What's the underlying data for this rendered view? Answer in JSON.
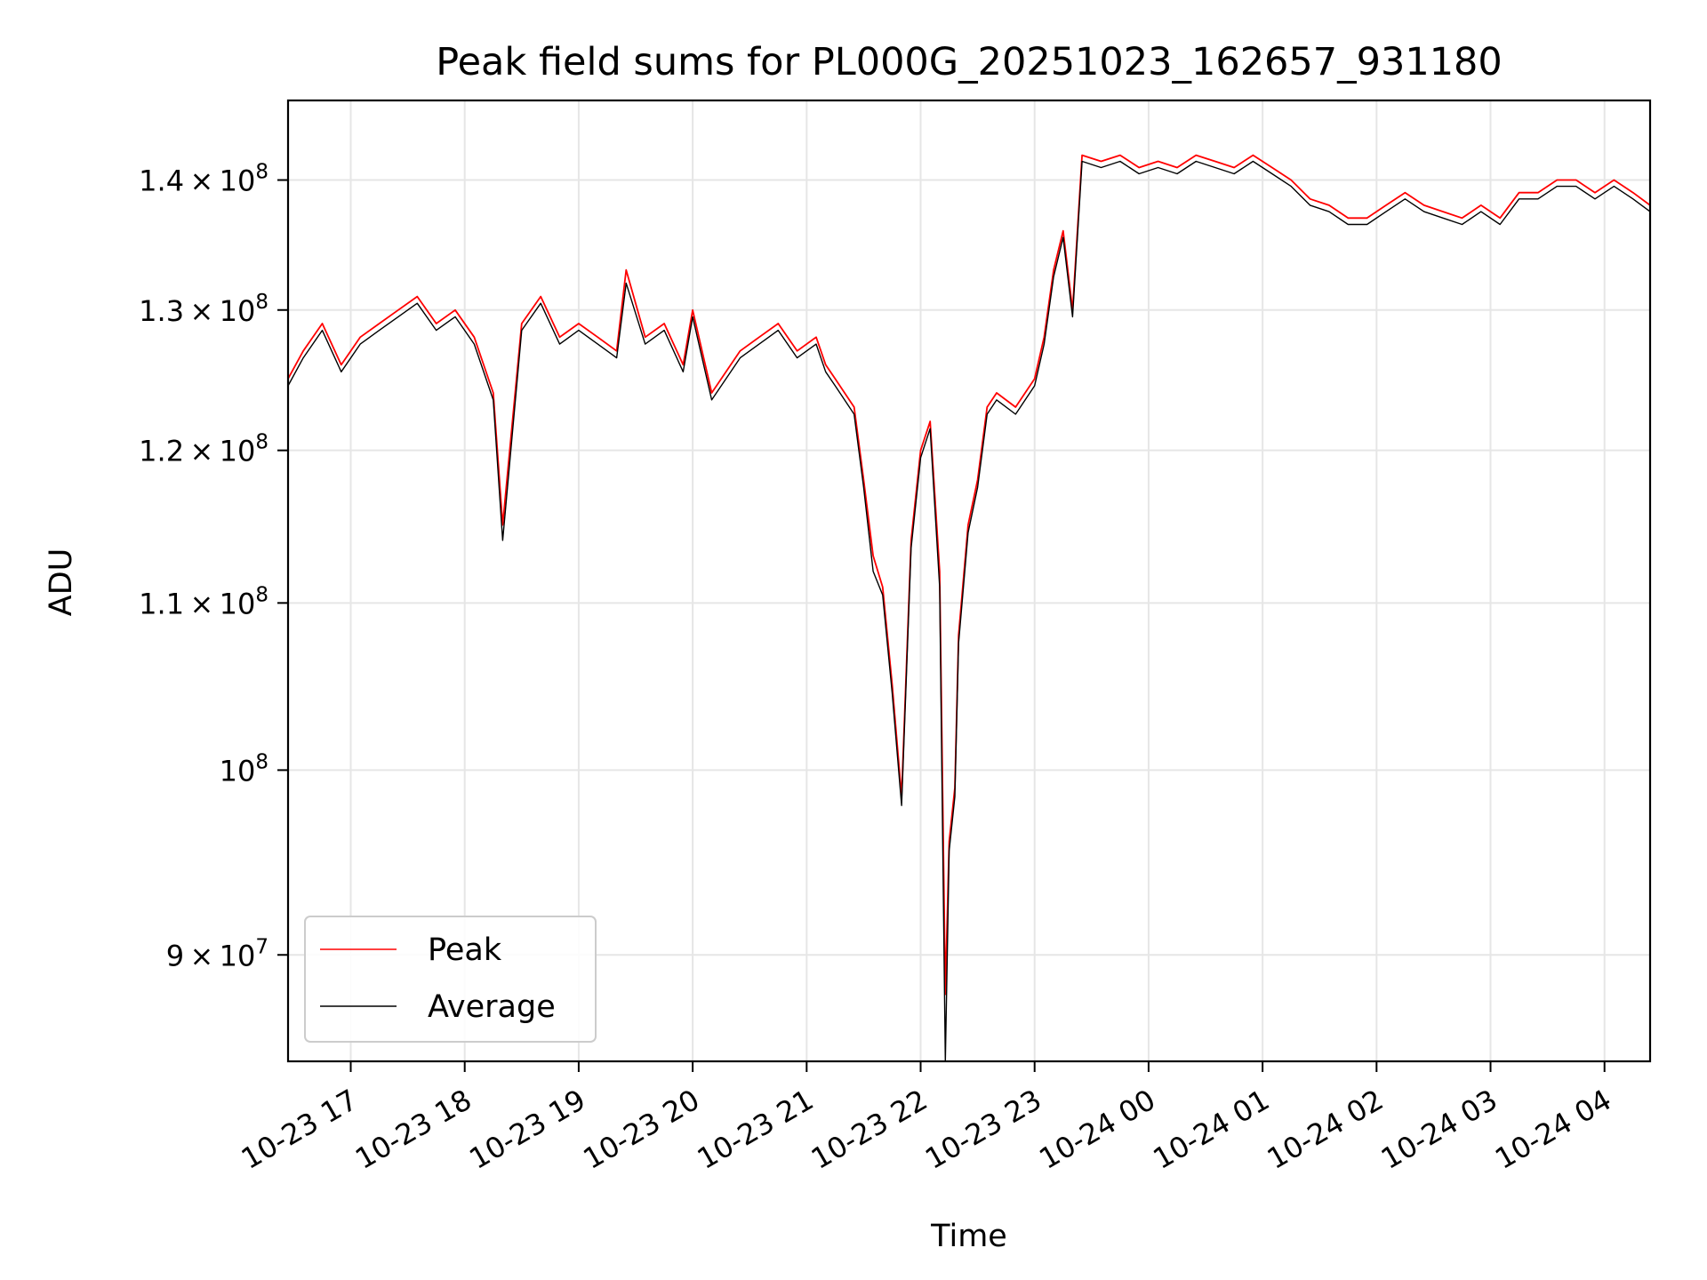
{
  "chart_data": {
    "type": "line",
    "title": "Peak field sums for PL000G_20251023_162657_931180",
    "xlabel": "Time",
    "ylabel": "ADU",
    "y_scale": "log",
    "grid": true,
    "legend_position": "lower-left",
    "xlim": [
      "2025-10-23 16:27",
      "2025-10-24 04:24"
    ],
    "ylim": [
      84700000,
      146500000
    ],
    "x_ticks": [
      {
        "value": "2025-10-23 17:00",
        "label": "10-23 17"
      },
      {
        "value": "2025-10-23 18:00",
        "label": "10-23 18"
      },
      {
        "value": "2025-10-23 19:00",
        "label": "10-23 19"
      },
      {
        "value": "2025-10-23 20:00",
        "label": "10-23 20"
      },
      {
        "value": "2025-10-23 21:00",
        "label": "10-23 21"
      },
      {
        "value": "2025-10-23 22:00",
        "label": "10-23 22"
      },
      {
        "value": "2025-10-23 23:00",
        "label": "10-23 23"
      },
      {
        "value": "2025-10-24 00:00",
        "label": "10-24 00"
      },
      {
        "value": "2025-10-24 01:00",
        "label": "10-24 01"
      },
      {
        "value": "2025-10-24 02:00",
        "label": "10-24 02"
      },
      {
        "value": "2025-10-24 03:00",
        "label": "10-24 03"
      },
      {
        "value": "2025-10-24 04:00",
        "label": "10-24 04"
      }
    ],
    "y_ticks": [
      {
        "value": 90000000,
        "mantissa": "9",
        "exponent": "7"
      },
      {
        "value": 100000000,
        "mantissa": "",
        "exponent": "8"
      },
      {
        "value": 110000000,
        "mantissa": "1.1",
        "exponent": "8"
      },
      {
        "value": 120000000,
        "mantissa": "1.2",
        "exponent": "8"
      },
      {
        "value": 130000000,
        "mantissa": "1.3",
        "exponent": "8"
      },
      {
        "value": 140000000,
        "mantissa": "1.4",
        "exponent": "8"
      }
    ],
    "series": [
      {
        "name": "Peak",
        "color": "#ff0000",
        "x": [
          "2025-10-23 16:27",
          "2025-10-23 16:35",
          "2025-10-23 16:45",
          "2025-10-23 16:55",
          "2025-10-23 17:05",
          "2025-10-23 17:15",
          "2025-10-23 17:25",
          "2025-10-23 17:35",
          "2025-10-23 17:45",
          "2025-10-23 17:55",
          "2025-10-23 18:05",
          "2025-10-23 18:15",
          "2025-10-23 18:20",
          "2025-10-23 18:30",
          "2025-10-23 18:40",
          "2025-10-23 18:50",
          "2025-10-23 19:00",
          "2025-10-23 19:10",
          "2025-10-23 19:20",
          "2025-10-23 19:25",
          "2025-10-23 19:35",
          "2025-10-23 19:45",
          "2025-10-23 19:55",
          "2025-10-23 20:00",
          "2025-10-23 20:10",
          "2025-10-23 20:25",
          "2025-10-23 20:35",
          "2025-10-23 20:45",
          "2025-10-23 20:55",
          "2025-10-23 21:05",
          "2025-10-23 21:10",
          "2025-10-23 21:15",
          "2025-10-23 21:25",
          "2025-10-23 21:30",
          "2025-10-23 21:35",
          "2025-10-23 21:40",
          "2025-10-23 21:45",
          "2025-10-23 21:50",
          "2025-10-23 21:55",
          "2025-10-23 22:00",
          "2025-10-23 22:05",
          "2025-10-23 22:10",
          "2025-10-23 22:13",
          "2025-10-23 22:15",
          "2025-10-23 22:18",
          "2025-10-23 22:20",
          "2025-10-23 22:25",
          "2025-10-23 22:30",
          "2025-10-23 22:35",
          "2025-10-23 22:40",
          "2025-10-23 22:50",
          "2025-10-23 23:00",
          "2025-10-23 23:05",
          "2025-10-23 23:10",
          "2025-10-23 23:15",
          "2025-10-23 23:20",
          "2025-10-23 23:25",
          "2025-10-23 23:35",
          "2025-10-23 23:45",
          "2025-10-23 23:55",
          "2025-10-24 00:05",
          "2025-10-24 00:15",
          "2025-10-24 00:25",
          "2025-10-24 00:35",
          "2025-10-24 00:45",
          "2025-10-24 00:55",
          "2025-10-24 01:05",
          "2025-10-24 01:15",
          "2025-10-24 01:25",
          "2025-10-24 01:35",
          "2025-10-24 01:45",
          "2025-10-24 01:55",
          "2025-10-24 02:05",
          "2025-10-24 02:15",
          "2025-10-24 02:25",
          "2025-10-24 02:35",
          "2025-10-24 02:45",
          "2025-10-24 02:55",
          "2025-10-24 03:05",
          "2025-10-24 03:15",
          "2025-10-24 03:25",
          "2025-10-24 03:35",
          "2025-10-24 03:45",
          "2025-10-24 03:55",
          "2025-10-24 04:05",
          "2025-10-24 04:15",
          "2025-10-24 04:24"
        ],
        "y": [
          125000000,
          127000000,
          129000000,
          126000000,
          128000000,
          129000000,
          130000000,
          131000000,
          129000000,
          130000000,
          128000000,
          124000000,
          115000000,
          129000000,
          131000000,
          128000000,
          129000000,
          128000000,
          127000000,
          133000000,
          128000000,
          129000000,
          126000000,
          130000000,
          124000000,
          127000000,
          128000000,
          129000000,
          127000000,
          128000000,
          126000000,
          125000000,
          123000000,
          118000000,
          113000000,
          111000000,
          105000000,
          98500000,
          114000000,
          120000000,
          122000000,
          112000000,
          88000000,
          96000000,
          99000000,
          108000000,
          115000000,
          118000000,
          123000000,
          124000000,
          123000000,
          125000000,
          128000000,
          133000000,
          136000000,
          130000000,
          142000000,
          141500000,
          142000000,
          141000000,
          141500000,
          141000000,
          142000000,
          141500000,
          141000000,
          142000000,
          141000000,
          140000000,
          138500000,
          138000000,
          137000000,
          137000000,
          138000000,
          139000000,
          138000000,
          137500000,
          137000000,
          138000000,
          137000000,
          139000000,
          139000000,
          140000000,
          140000000,
          139000000,
          140000000,
          139000000,
          138000000
        ]
      },
      {
        "name": "Average",
        "color": "#000000",
        "x": [
          "2025-10-23 16:27",
          "2025-10-23 16:35",
          "2025-10-23 16:45",
          "2025-10-23 16:55",
          "2025-10-23 17:05",
          "2025-10-23 17:15",
          "2025-10-23 17:25",
          "2025-10-23 17:35",
          "2025-10-23 17:45",
          "2025-10-23 17:55",
          "2025-10-23 18:05",
          "2025-10-23 18:15",
          "2025-10-23 18:20",
          "2025-10-23 18:30",
          "2025-10-23 18:40",
          "2025-10-23 18:50",
          "2025-10-23 19:00",
          "2025-10-23 19:10",
          "2025-10-23 19:20",
          "2025-10-23 19:25",
          "2025-10-23 19:35",
          "2025-10-23 19:45",
          "2025-10-23 19:55",
          "2025-10-23 20:00",
          "2025-10-23 20:10",
          "2025-10-23 20:25",
          "2025-10-23 20:35",
          "2025-10-23 20:45",
          "2025-10-23 20:55",
          "2025-10-23 21:05",
          "2025-10-23 21:10",
          "2025-10-23 21:15",
          "2025-10-23 21:25",
          "2025-10-23 21:30",
          "2025-10-23 21:35",
          "2025-10-23 21:40",
          "2025-10-23 21:45",
          "2025-10-23 21:50",
          "2025-10-23 21:55",
          "2025-10-23 22:00",
          "2025-10-23 22:05",
          "2025-10-23 22:10",
          "2025-10-23 22:13",
          "2025-10-23 22:15",
          "2025-10-23 22:18",
          "2025-10-23 22:20",
          "2025-10-23 22:25",
          "2025-10-23 22:30",
          "2025-10-23 22:35",
          "2025-10-23 22:40",
          "2025-10-23 22:50",
          "2025-10-23 23:00",
          "2025-10-23 23:05",
          "2025-10-23 23:10",
          "2025-10-23 23:15",
          "2025-10-23 23:20",
          "2025-10-23 23:25",
          "2025-10-23 23:35",
          "2025-10-23 23:45",
          "2025-10-23 23:55",
          "2025-10-24 00:05",
          "2025-10-24 00:15",
          "2025-10-24 00:25",
          "2025-10-24 00:35",
          "2025-10-24 00:45",
          "2025-10-24 00:55",
          "2025-10-24 01:05",
          "2025-10-24 01:15",
          "2025-10-24 01:25",
          "2025-10-24 01:35",
          "2025-10-24 01:45",
          "2025-10-24 01:55",
          "2025-10-24 02:05",
          "2025-10-24 02:15",
          "2025-10-24 02:25",
          "2025-10-24 02:35",
          "2025-10-24 02:45",
          "2025-10-24 02:55",
          "2025-10-24 03:05",
          "2025-10-24 03:15",
          "2025-10-24 03:25",
          "2025-10-24 03:35",
          "2025-10-24 03:45",
          "2025-10-24 03:55",
          "2025-10-24 04:05",
          "2025-10-24 04:15",
          "2025-10-24 04:24"
        ],
        "y": [
          124500000,
          126500000,
          128500000,
          125500000,
          127500000,
          128500000,
          129500000,
          130500000,
          128500000,
          129500000,
          127500000,
          123500000,
          114000000,
          128500000,
          130500000,
          127500000,
          128500000,
          127500000,
          126500000,
          132000000,
          127500000,
          128500000,
          125500000,
          129500000,
          123500000,
          126500000,
          127500000,
          128500000,
          126500000,
          127500000,
          125500000,
          124500000,
          122500000,
          117500000,
          112000000,
          110500000,
          104500000,
          98000000,
          113500000,
          119500000,
          121500000,
          111000000,
          84700000,
          95500000,
          98500000,
          107500000,
          114500000,
          117500000,
          122500000,
          123500000,
          122500000,
          124500000,
          127500000,
          132500000,
          135500000,
          129500000,
          141500000,
          141000000,
          141500000,
          140500000,
          141000000,
          140500000,
          141500000,
          141000000,
          140500000,
          141500000,
          140500000,
          139500000,
          138000000,
          137500000,
          136500000,
          136500000,
          137500000,
          138500000,
          137500000,
          137000000,
          136500000,
          137500000,
          136500000,
          138500000,
          138500000,
          139500000,
          139500000,
          138500000,
          139500000,
          138500000,
          137500000
        ]
      }
    ]
  }
}
